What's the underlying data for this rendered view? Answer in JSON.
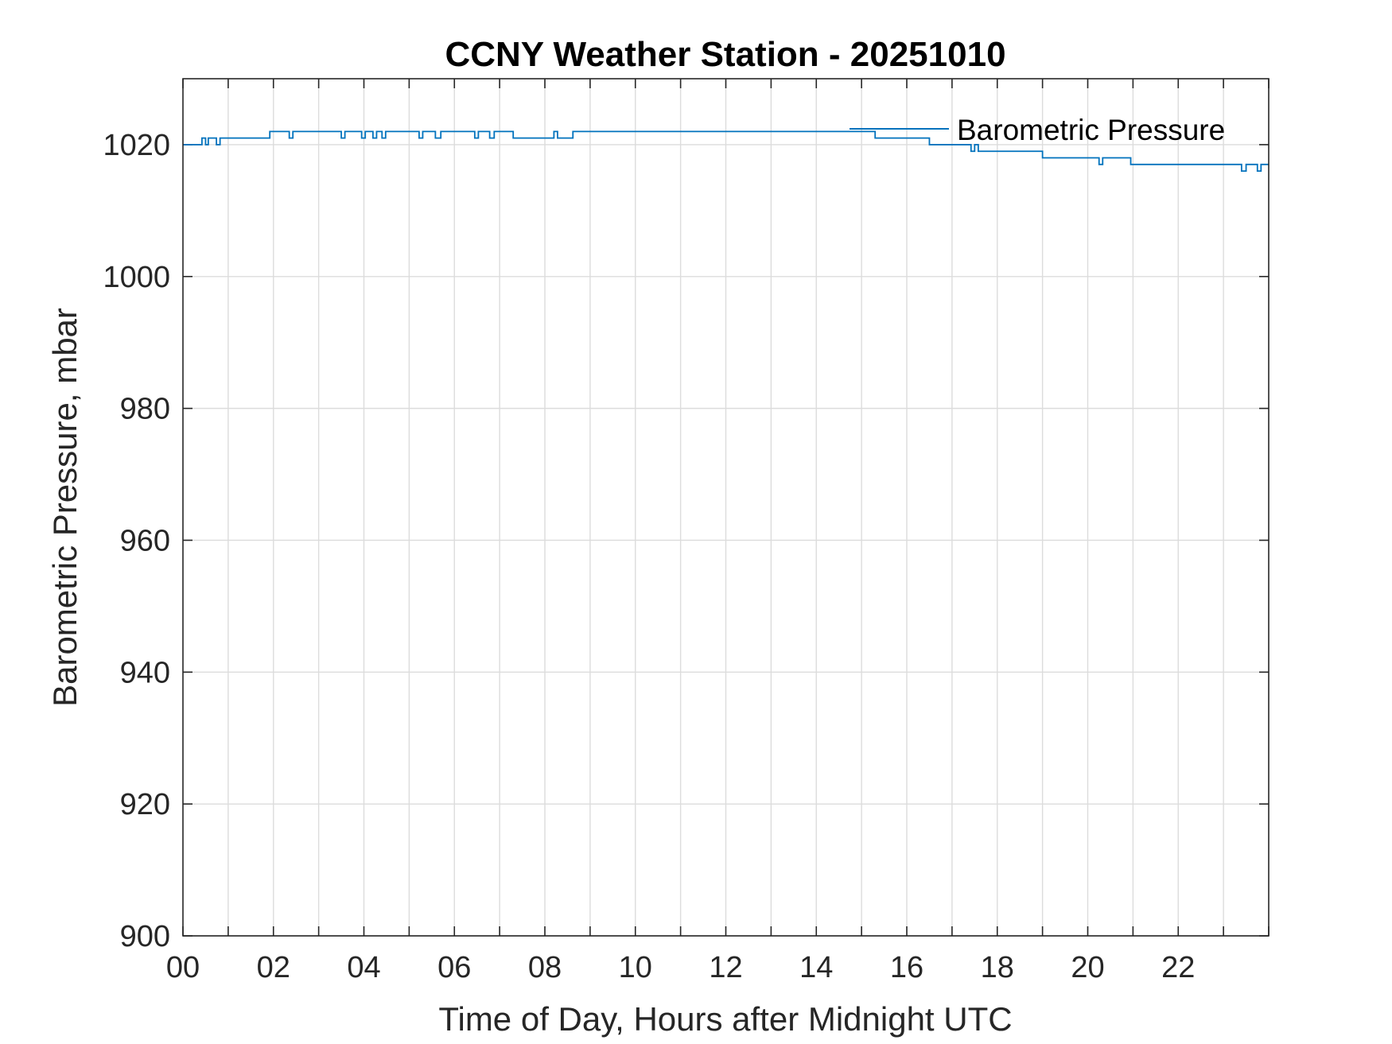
{
  "chart_data": {
    "type": "line",
    "title": "CCNY Weather Station - 20251010",
    "xlabel": "Time of Day, Hours after Midnight UTC",
    "ylabel": "Barometric Pressure, mbar",
    "xlim": [
      0,
      24
    ],
    "ylim": [
      900,
      1030
    ],
    "x_ticks": [
      0,
      2,
      4,
      6,
      8,
      10,
      12,
      14,
      16,
      18,
      20,
      22
    ],
    "x_tick_labels": [
      "00",
      "02",
      "04",
      "06",
      "08",
      "10",
      "12",
      "14",
      "16",
      "18",
      "20",
      "22"
    ],
    "y_ticks": [
      900,
      920,
      940,
      960,
      980,
      1000,
      1020
    ],
    "y_tick_labels": [
      "900",
      "920",
      "940",
      "960",
      "980",
      "1000",
      "1020"
    ],
    "grid": true,
    "legend_position": "top-right",
    "series": [
      {
        "name": "Barometric Pressure",
        "color": "#0072BD",
        "step": true,
        "points": [
          [
            0.0,
            1020
          ],
          [
            0.42,
            1021
          ],
          [
            0.5,
            1020
          ],
          [
            0.56,
            1021
          ],
          [
            0.74,
            1020
          ],
          [
            0.82,
            1021
          ],
          [
            1.92,
            1022
          ],
          [
            2.35,
            1021
          ],
          [
            2.43,
            1022
          ],
          [
            3.5,
            1021
          ],
          [
            3.58,
            1022
          ],
          [
            3.95,
            1021
          ],
          [
            4.03,
            1022
          ],
          [
            4.2,
            1021
          ],
          [
            4.28,
            1022
          ],
          [
            4.4,
            1021
          ],
          [
            4.48,
            1022
          ],
          [
            5.22,
            1021
          ],
          [
            5.3,
            1022
          ],
          [
            5.58,
            1021
          ],
          [
            5.7,
            1022
          ],
          [
            6.45,
            1021
          ],
          [
            6.53,
            1022
          ],
          [
            6.78,
            1021
          ],
          [
            6.88,
            1022
          ],
          [
            7.3,
            1021
          ],
          [
            8.2,
            1022
          ],
          [
            8.28,
            1021
          ],
          [
            8.62,
            1022
          ],
          [
            15.3,
            1021
          ],
          [
            16.5,
            1020
          ],
          [
            17.42,
            1019
          ],
          [
            17.5,
            1020
          ],
          [
            17.58,
            1019
          ],
          [
            19.0,
            1018
          ],
          [
            20.25,
            1017
          ],
          [
            20.33,
            1018
          ],
          [
            20.95,
            1017
          ],
          [
            23.4,
            1016
          ],
          [
            23.5,
            1017
          ],
          [
            23.75,
            1016
          ],
          [
            23.83,
            1017
          ],
          [
            24.0,
            1017
          ]
        ]
      }
    ]
  }
}
